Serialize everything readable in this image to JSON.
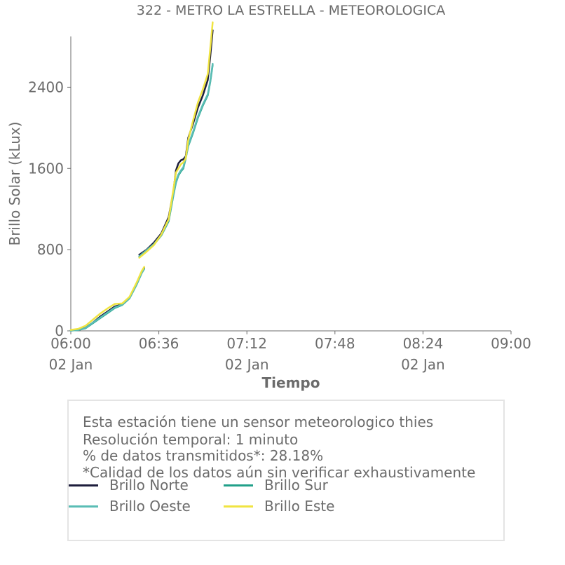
{
  "chart_data": {
    "type": "line",
    "title": "322 - METRO LA ESTRELLA - METEOROLOGICA",
    "xlabel": "Tiempo",
    "ylabel": "Brillo Solar (kLux)",
    "xlim": [
      "06:00",
      "09:00"
    ],
    "ylim": [
      0,
      2900
    ],
    "yticks": [
      0,
      800,
      1600,
      2400
    ],
    "xticks": [
      {
        "time": "06:00",
        "date": "02 Jan"
      },
      {
        "time": "06:36",
        "date": ""
      },
      {
        "time": "07:12",
        "date": "02 Jan"
      },
      {
        "time": "07:48",
        "date": ""
      },
      {
        "time": "08:24",
        "date": "02 Jan"
      },
      {
        "time": "09:00",
        "date": ""
      }
    ],
    "series": [
      {
        "name": "Brillo Norte",
        "color": "#1e1e3c",
        "segments": [
          [
            [
              0,
              5
            ],
            [
              3,
              10
            ],
            [
              6,
              30
            ],
            [
              9,
              80
            ],
            [
              12,
              140
            ],
            [
              15,
              190
            ],
            [
              18,
              240
            ],
            [
              21,
              260
            ],
            [
              24,
              330
            ],
            [
              27,
              470
            ],
            [
              29,
              580
            ],
            [
              30,
              620
            ]
          ],
          [
            [
              28,
              750
            ],
            [
              31,
              800
            ],
            [
              34,
              870
            ],
            [
              37,
              960
            ],
            [
              40,
              1120
            ],
            [
              42,
              1380
            ],
            [
              43,
              1580
            ],
            [
              44,
              1650
            ],
            [
              45,
              1680
            ],
            [
              46,
              1690
            ],
            [
              47,
              1720
            ],
            [
              48,
              1900
            ],
            [
              50,
              2040
            ],
            [
              52,
              2200
            ],
            [
              54,
              2320
            ],
            [
              56,
              2470
            ],
            [
              57,
              2700
            ],
            [
              58,
              2960
            ]
          ]
        ]
      },
      {
        "name": "Brillo Sur",
        "color": "#21a08a",
        "segments": [
          [
            [
              0,
              3
            ],
            [
              3,
              8
            ],
            [
              6,
              25
            ],
            [
              9,
              75
            ],
            [
              12,
              125
            ],
            [
              15,
              175
            ],
            [
              18,
              225
            ],
            [
              21,
              255
            ],
            [
              24,
              320
            ],
            [
              27,
              460
            ],
            [
              29,
              570
            ],
            [
              30,
              610
            ]
          ],
          [
            [
              28,
              730
            ],
            [
              31,
              790
            ],
            [
              34,
              850
            ],
            [
              37,
              940
            ],
            [
              40,
              1080
            ],
            [
              42,
              1340
            ],
            [
              43,
              1460
            ],
            [
              44,
              1530
            ],
            [
              45,
              1570
            ],
            [
              46,
              1600
            ],
            [
              47,
              1700
            ],
            [
              48,
              1820
            ],
            [
              50,
              1950
            ],
            [
              52,
              2100
            ],
            [
              54,
              2220
            ],
            [
              56,
              2320
            ],
            [
              57,
              2450
            ],
            [
              58,
              2620
            ]
          ]
        ]
      },
      {
        "name": "Brillo Oeste",
        "color": "#5abdb5",
        "segments": [
          [
            [
              0,
              3
            ],
            [
              3,
              8
            ],
            [
              6,
              28
            ],
            [
              9,
              80
            ],
            [
              12,
              130
            ],
            [
              15,
              180
            ],
            [
              18,
              230
            ],
            [
              21,
              258
            ],
            [
              24,
              322
            ],
            [
              27,
              462
            ],
            [
              29,
              572
            ],
            [
              30,
              612
            ]
          ],
          [
            [
              28,
              735
            ],
            [
              31,
              795
            ],
            [
              34,
              855
            ],
            [
              37,
              945
            ],
            [
              40,
              1090
            ],
            [
              42,
              1350
            ],
            [
              43,
              1470
            ],
            [
              44,
              1540
            ],
            [
              45,
              1580
            ],
            [
              46,
              1610
            ],
            [
              47,
              1710
            ],
            [
              48,
              1830
            ],
            [
              50,
              1960
            ],
            [
              52,
              2110
            ],
            [
              54,
              2230
            ],
            [
              56,
              2330
            ],
            [
              57,
              2460
            ],
            [
              58,
              2630
            ]
          ]
        ]
      },
      {
        "name": "Brillo Este",
        "color": "#f0e442",
        "segments": [
          [
            [
              0,
              10
            ],
            [
              3,
              20
            ],
            [
              6,
              50
            ],
            [
              9,
              110
            ],
            [
              12,
              170
            ],
            [
              15,
              220
            ],
            [
              18,
              265
            ],
            [
              21,
              270
            ],
            [
              24,
              335
            ],
            [
              27,
              480
            ],
            [
              29,
              590
            ],
            [
              30,
              630
            ]
          ],
          [
            [
              28,
              720
            ],
            [
              31,
              780
            ],
            [
              34,
              845
            ],
            [
              37,
              950
            ],
            [
              40,
              1100
            ],
            [
              42,
              1400
            ],
            [
              43,
              1560
            ],
            [
              44,
              1600
            ],
            [
              45,
              1640
            ],
            [
              46,
              1660
            ],
            [
              47,
              1700
            ],
            [
              48,
              1880
            ],
            [
              50,
              2070
            ],
            [
              52,
              2250
            ],
            [
              54,
              2380
            ],
            [
              56,
              2530
            ],
            [
              57,
              2780
            ],
            [
              58,
              3040
            ]
          ]
        ]
      }
    ],
    "legend": [
      {
        "name": "Brillo Norte",
        "color": "#1e1e3c"
      },
      {
        "name": "Brillo Sur",
        "color": "#21a08a"
      },
      {
        "name": "Brillo Oeste",
        "color": "#5abdb5"
      },
      {
        "name": "Brillo Este",
        "color": "#f0e442"
      }
    ],
    "legend_placement": "below",
    "grid": false
  },
  "info": {
    "line1": "Esta estación tiene un sensor meteorologico thies",
    "line2": "Resolución temporal: 1 minuto",
    "line3": "% de datos transmitidos*: 28.18%",
    "line4": "*Calidad de los datos aún sin verificar exhaustivamente"
  }
}
